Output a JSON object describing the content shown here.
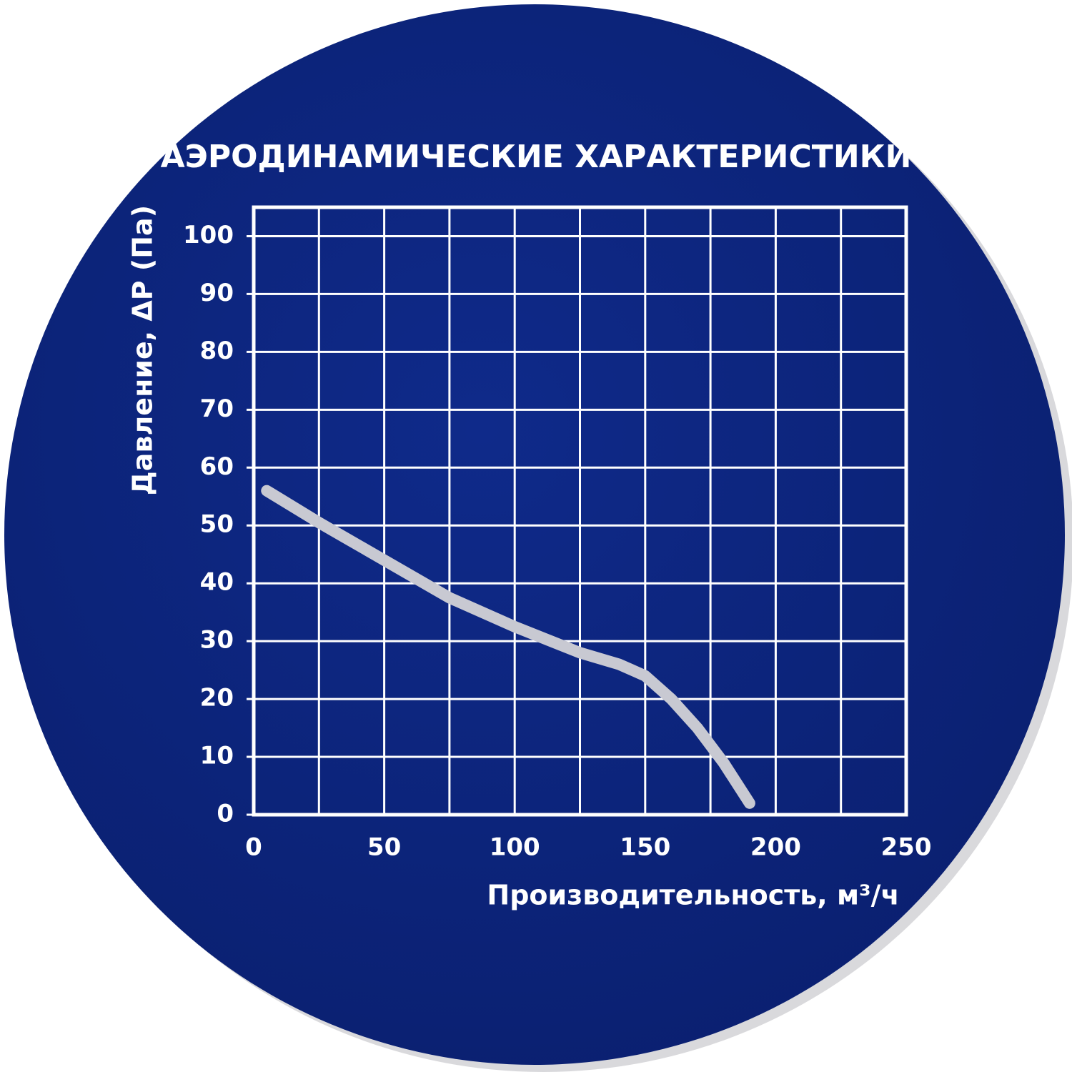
{
  "chart_data": {
    "type": "line",
    "title": "АЭРОДИНАМИЧЕСКИЕ ХАРАКТЕРИСТИКИ",
    "x_label": "Производительность, м³/ч",
    "y_label": "Давление, ΔP (Па)",
    "x": [
      5,
      25,
      50,
      75,
      100,
      125,
      140,
      150,
      160,
      170,
      180,
      190
    ],
    "series": [
      {
        "color": "#c8c9d2",
        "values": [
          56,
          50.5,
          44,
          37.5,
          32.5,
          28,
          26,
          24,
          20,
          15,
          9,
          2
        ]
      }
    ],
    "xlim": [
      0,
      250
    ],
    "ylim": [
      0,
      105
    ],
    "xticks": [
      0,
      50,
      100,
      150,
      200,
      250
    ],
    "yticks": [
      0,
      10,
      20,
      30,
      40,
      50,
      60,
      70,
      80,
      90,
      100
    ],
    "grid": true,
    "x_minor_grid": true
  }
}
